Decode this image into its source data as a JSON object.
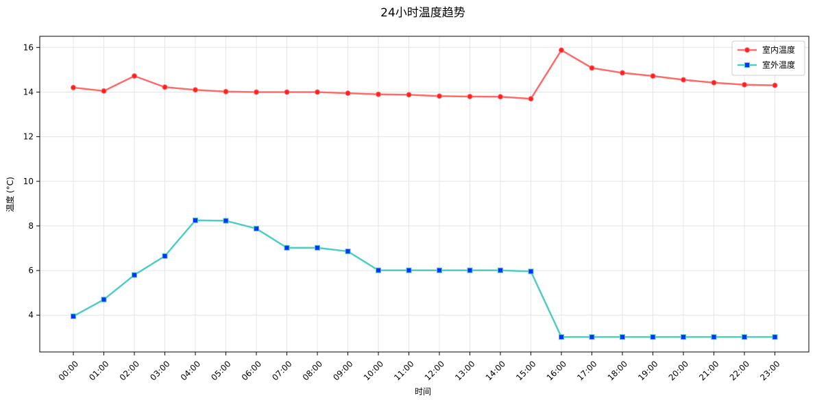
{
  "chart_data": {
    "type": "line",
    "title": "24小时温度趋势",
    "xlabel": "时间",
    "ylabel": "温度 (°C)",
    "ylim": [
      2.35,
      16.5
    ],
    "yticks": [
      4,
      6,
      8,
      10,
      12,
      14,
      16
    ],
    "grid": true,
    "legend_position": "top-right",
    "categories": [
      "00:00",
      "01:00",
      "02:00",
      "03:00",
      "04:00",
      "05:00",
      "06:00",
      "07:00",
      "08:00",
      "09:00",
      "10:00",
      "11:00",
      "12:00",
      "13:00",
      "14:00",
      "15:00",
      "16:00",
      "17:00",
      "18:00",
      "19:00",
      "20:00",
      "21:00",
      "22:00",
      "23:00"
    ],
    "series": [
      {
        "name": "室内温度",
        "color": "#ff6b6b",
        "marker": "circle",
        "marker_color": "#ff2020",
        "values": [
          14.2,
          14.05,
          14.72,
          14.22,
          14.1,
          14.02,
          14.0,
          14.0,
          14.0,
          13.95,
          13.9,
          13.88,
          13.82,
          13.8,
          13.79,
          13.7,
          15.88,
          15.08,
          14.86,
          14.72,
          14.55,
          14.42,
          14.33,
          14.3
        ]
      },
      {
        "name": "室外温度",
        "color": "#4ecdc4",
        "marker": "square",
        "marker_color": "#0033ff",
        "values": [
          3.95,
          4.7,
          5.8,
          6.65,
          8.25,
          8.23,
          7.88,
          7.02,
          7.02,
          6.86,
          6.01,
          6.01,
          6.01,
          6.01,
          6.01,
          5.96,
          3.02,
          3.02,
          3.02,
          3.02,
          3.02,
          3.02,
          3.02,
          3.02
        ]
      }
    ]
  }
}
